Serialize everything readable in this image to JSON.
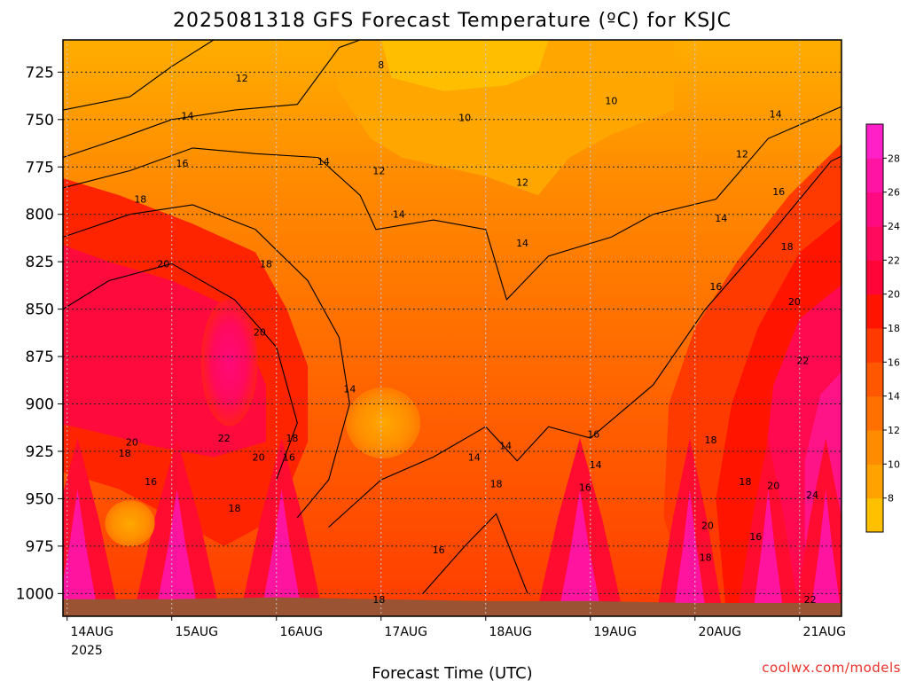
{
  "chart_data": {
    "type": "heatmap",
    "title": "2025081318 GFS Forecast Temperature (ºC) for KSJC",
    "xlabel": "Forecast Time (UTC)",
    "ylabel": "",
    "y_axis": {
      "unit": "hPa",
      "reversed": true,
      "ylim": [
        1012,
        708
      ],
      "ticks": [
        725,
        750,
        775,
        800,
        825,
        850,
        875,
        900,
        925,
        950,
        975,
        1000
      ]
    },
    "x_axis": {
      "days": [
        "14AUG",
        "15AUG",
        "16AUG",
        "17AUG",
        "18AUG",
        "19AUG",
        "20AUG",
        "21AUG"
      ],
      "year_label": "2025",
      "xlim_days": [
        -0.04,
        7.4
      ]
    },
    "grid": true,
    "colorbar": {
      "levels": [
        8,
        10,
        12,
        14,
        16,
        18,
        20,
        22,
        24,
        26,
        28
      ],
      "colors": [
        "#ffc000",
        "#ffa200",
        "#ff8b00",
        "#ff7000",
        "#ff5600",
        "#ff3a00",
        "#ff1400",
        "#ff0538",
        "#ff0a5c",
        "#ff0a80",
        "#ff14a4",
        "#ff20c8"
      ]
    },
    "ground_color": "#9a5333",
    "contour_labels": [
      {
        "t": 3.0,
        "p": 721,
        "v": "8"
      },
      {
        "t": 1.67,
        "p": 728,
        "v": "12"
      },
      {
        "t": 5.2,
        "p": 740,
        "v": "10"
      },
      {
        "t": 3.8,
        "p": 749,
        "v": "10"
      },
      {
        "t": 1.15,
        "p": 748,
        "v": "14"
      },
      {
        "t": 6.77,
        "p": 747,
        "v": "14"
      },
      {
        "t": 6.45,
        "p": 768,
        "v": "12"
      },
      {
        "t": 2.45,
        "p": 772,
        "v": "14"
      },
      {
        "t": 1.1,
        "p": 773,
        "v": "16"
      },
      {
        "t": 2.98,
        "p": 777,
        "v": "12"
      },
      {
        "t": 4.35,
        "p": 783,
        "v": "12"
      },
      {
        "t": 6.8,
        "p": 788,
        "v": "16"
      },
      {
        "t": 0.7,
        "p": 792,
        "v": "18"
      },
      {
        "t": 3.17,
        "p": 800,
        "v": "14"
      },
      {
        "t": 6.25,
        "p": 802,
        "v": "14"
      },
      {
        "t": 6.88,
        "p": 817,
        "v": "18"
      },
      {
        "t": 4.35,
        "p": 815,
        "v": "14"
      },
      {
        "t": 0.92,
        "p": 826,
        "v": "20"
      },
      {
        "t": 1.9,
        "p": 826,
        "v": "18"
      },
      {
        "t": 6.2,
        "p": 838,
        "v": "16"
      },
      {
        "t": 6.95,
        "p": 846,
        "v": "20"
      },
      {
        "t": 1.84,
        "p": 862,
        "v": "20"
      },
      {
        "t": 7.03,
        "p": 877,
        "v": "22"
      },
      {
        "t": 2.7,
        "p": 892,
        "v": "14"
      },
      {
        "t": 5.03,
        "p": 916,
        "v": "16"
      },
      {
        "t": 0.62,
        "p": 920,
        "v": "20"
      },
      {
        "t": 1.5,
        "p": 918,
        "v": "22"
      },
      {
        "t": 2.15,
        "p": 918,
        "v": "18"
      },
      {
        "t": 6.15,
        "p": 919,
        "v": "18"
      },
      {
        "t": 4.19,
        "p": 922,
        "v": "14"
      },
      {
        "t": 3.89,
        "p": 928,
        "v": "14"
      },
      {
        "t": 0.55,
        "p": 926,
        "v": "18"
      },
      {
        "t": 1.83,
        "p": 928,
        "v": "20"
      },
      {
        "t": 2.12,
        "p": 928,
        "v": "16"
      },
      {
        "t": 5.05,
        "p": 932,
        "v": "14"
      },
      {
        "t": 0.8,
        "p": 941,
        "v": "16"
      },
      {
        "t": 6.75,
        "p": 943,
        "v": "20"
      },
      {
        "t": 4.95,
        "p": 944,
        "v": "16"
      },
      {
        "t": 6.48,
        "p": 941,
        "v": "18"
      },
      {
        "t": 4.1,
        "p": 942,
        "v": "18"
      },
      {
        "t": 7.12,
        "p": 948,
        "v": "24"
      },
      {
        "t": 1.6,
        "p": 955,
        "v": "18"
      },
      {
        "t": 6.12,
        "p": 964,
        "v": "20"
      },
      {
        "t": 6.58,
        "p": 970,
        "v": "16"
      },
      {
        "t": 3.55,
        "p": 977,
        "v": "16"
      },
      {
        "t": 6.1,
        "p": 981,
        "v": "18"
      },
      {
        "t": 7.1,
        "p": 1003,
        "v": "22"
      },
      {
        "t": 2.98,
        "p": 1003,
        "v": "18"
      }
    ]
  },
  "credit": "coolwx.com/models"
}
